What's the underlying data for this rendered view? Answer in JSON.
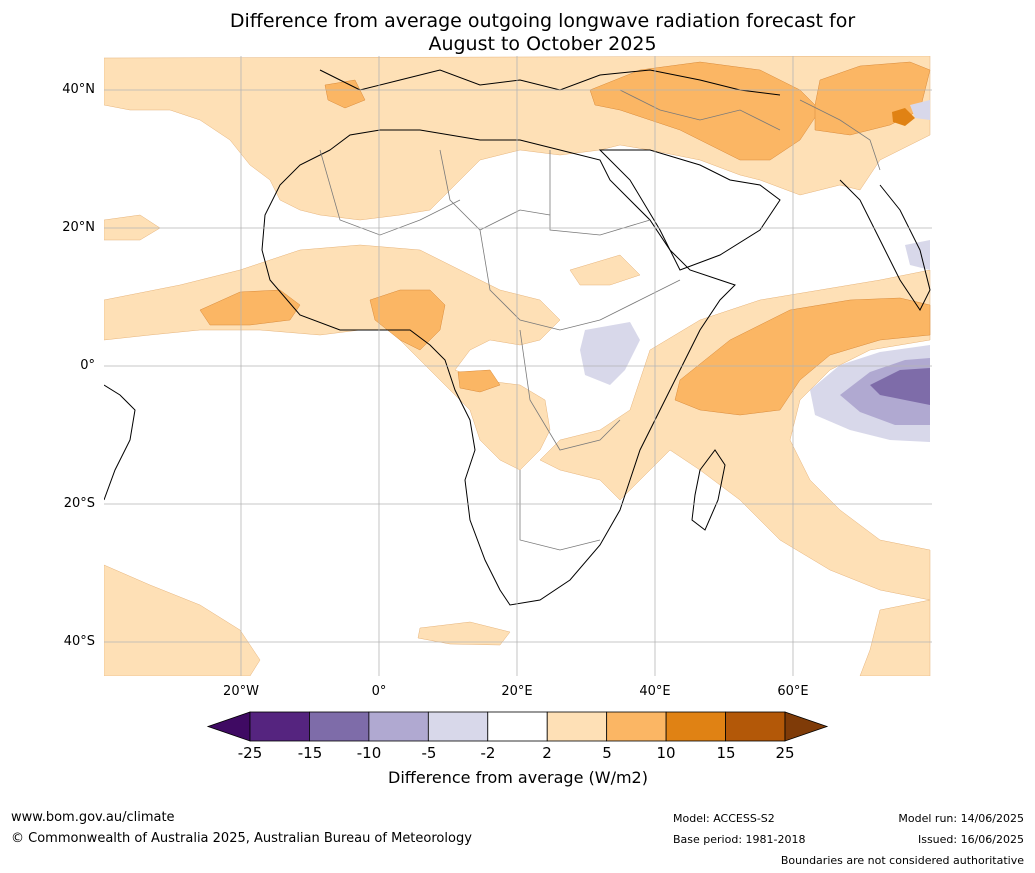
{
  "title": {
    "line1": "Difference from average outgoing longwave radiation forecast for",
    "line2": "August to October 2025"
  },
  "map": {
    "lat_labels": [
      "40°N",
      "20°N",
      "0°",
      "20°S",
      "40°S"
    ],
    "lon_labels": [
      "20°W",
      "0°",
      "20°E",
      "40°E",
      "60°E"
    ],
    "extent": {
      "lon": [
        -40,
        80
      ],
      "lat": [
        -45,
        45
      ]
    },
    "gridlines": true
  },
  "colorbar": {
    "ticks": [
      "-25",
      "-15",
      "-10",
      "-5",
      "-2",
      "2",
      "5",
      "10",
      "15",
      "25"
    ],
    "colors": [
      "#3f0a63",
      "#55247f",
      "#7e6ca9",
      "#b0a9d1",
      "#d8d8ea",
      "#ffffff",
      "#fee0b6",
      "#fbb664",
      "#e08214",
      "#b35808",
      "#7f3b08"
    ],
    "label": "Difference from average (W/m2)"
  },
  "footer": {
    "url": "www.bom.gov.au/climate",
    "copyright": "© Commonwealth of Australia 2025, Australian Bureau of Meteorology",
    "model": "Model: ACCESS-S2",
    "base_period": "Base period: 1981-2018",
    "model_run": "Model run: 14/06/2025",
    "issued": "Issued: 16/06/2025",
    "disclaimer": "Boundaries are not considered authoritative"
  }
}
